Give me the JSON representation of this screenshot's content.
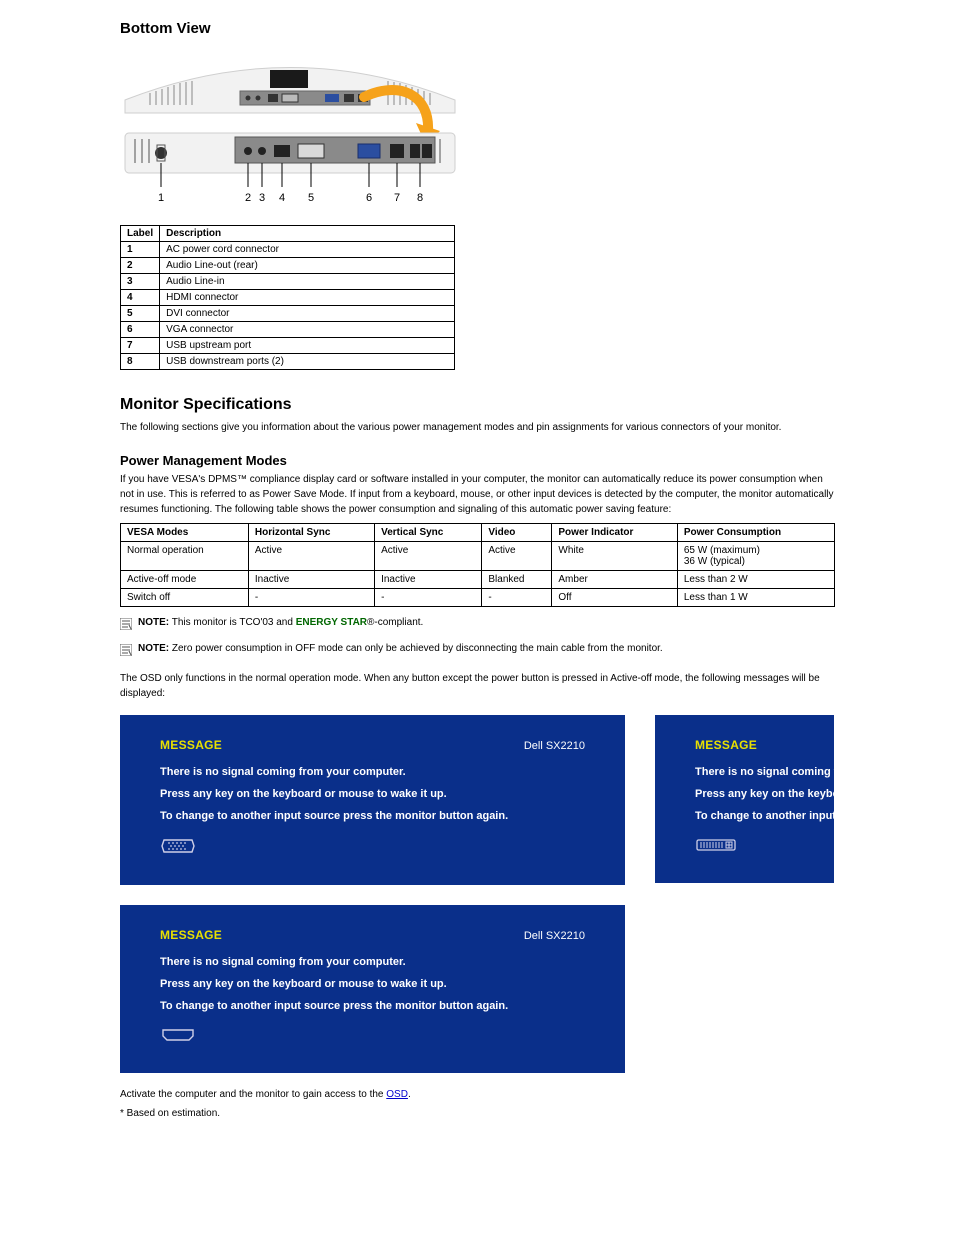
{
  "page": {
    "title": "Bottom View"
  },
  "port_table": {
    "headers": [
      "Label",
      "Description"
    ],
    "rows": [
      [
        "1",
        "AC power cord connector"
      ],
      [
        "2",
        "Audio Line-out (rear)"
      ],
      [
        "3",
        "Audio Line-in"
      ],
      [
        "4",
        "HDMI connector"
      ],
      [
        "5",
        "DVI connector"
      ],
      [
        "6",
        "VGA connector"
      ],
      [
        "7",
        "USB upstream port"
      ],
      [
        "8",
        "USB downstream ports (2)"
      ]
    ]
  },
  "specifications": {
    "heading": "Monitor Specifications",
    "intro": "The following sections give you information about the various power management modes and pin assignments for various connectors of your monitor.",
    "links": {
      "prefix": "",
      "items": []
    }
  },
  "power_modes": {
    "heading": "Power Management Modes",
    "intro": "If you have VESA's DPMS™ compliance display card or software installed in your computer, the monitor can automatically reduce its power consumption when not in use. This is referred to as Power Save Mode. If input from a keyboard, mouse, or other input devices is detected by the computer, the monitor automatically resumes functioning. The following table shows the power consumption and signaling of this automatic power saving feature:",
    "table": {
      "headers": [
        "VESA Modes",
        "Horizontal Sync",
        "Vertical Sync",
        "Video",
        "Power Indicator",
        "Power Consumption"
      ],
      "rows": [
        [
          "Normal operation",
          "Active",
          "Active",
          "Active",
          "White",
          "65 W (maximum)\n36 W (typical)"
        ],
        [
          "Active-off mode",
          "Inactive",
          "Inactive",
          "Blanked",
          "Amber",
          "Less than 2 W"
        ],
        [
          "Switch off",
          "-",
          "-",
          "-",
          "Off",
          "Less than 1 W"
        ]
      ]
    }
  },
  "notes": {
    "compliance": {
      "label": "NOTE:",
      "text_prefix": "This monitor is TCO'03 and ",
      "energystar": "ENERGY STAR",
      "text_suffix": "®-compliant."
    },
    "zero_power": {
      "label": "NOTE:",
      "text": "Zero power consumption in OFF mode can only be achieved by disconnecting the main cable from the monitor."
    }
  },
  "osd_info": {
    "intro": "The OSD only functions in the normal operation mode. When any button except the power button is pressed in Active-off mode, the following messages will be displayed:"
  },
  "osd_boxes": {
    "model": "Dell SX2210",
    "msg_label": "MESSAGE",
    "lines": [
      "There is no signal coming from your computer.",
      "Press any key on the keyboard or mouse to wake it up.",
      "To change to another input source press the monitor button again."
    ],
    "lines_clipped": [
      "There is no signal coming from",
      "Press any key on the keyboard o",
      "To change to another input sour"
    ],
    "connectors": [
      "vga",
      "hdmi",
      "dvi"
    ],
    "colors": {
      "bg": "#0a2f8a",
      "text": "#ffffff",
      "heading": "#e8e000",
      "icon": "#cfcfe8"
    }
  },
  "activate": {
    "text_before": "Activate the computer and the monitor to gain access to the ",
    "link": "OSD",
    "text_after": "."
  },
  "footnote": {
    "text": "* Based on estimation."
  }
}
